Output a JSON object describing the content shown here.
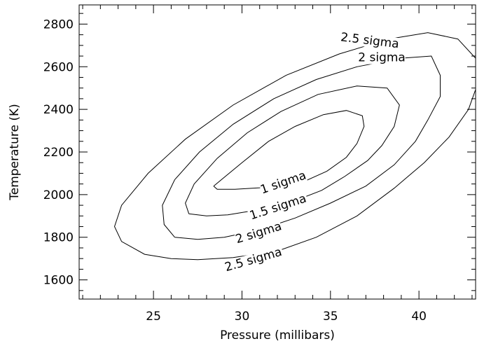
{
  "chart_data": {
    "type": "contour",
    "xlabel": "Pressure (millibars)",
    "ylabel": "Temperature (K)",
    "xlim": [
      20.8,
      43.2
    ],
    "ylim": [
      1510,
      2890
    ],
    "x_ticks": [
      25,
      30,
      35,
      40
    ],
    "x_tick_labels": [
      "25",
      "30",
      "35",
      "40"
    ],
    "y_ticks": [
      1600,
      1800,
      2000,
      2200,
      2400,
      2600,
      2800
    ],
    "y_tick_labels": [
      "1600",
      "1800",
      "2000",
      "2200",
      "2400",
      "2600",
      "2800"
    ],
    "contours": [
      {
        "label": "1 sigma",
        "points": [
          [
            28.4,
            2040
          ],
          [
            30.0,
            2150
          ],
          [
            31.5,
            2250
          ],
          [
            33.0,
            2320
          ],
          [
            34.6,
            2375
          ],
          [
            35.9,
            2395
          ],
          [
            36.8,
            2370
          ],
          [
            36.9,
            2320
          ],
          [
            36.5,
            2240
          ],
          [
            35.9,
            2175
          ],
          [
            34.8,
            2110
          ],
          [
            33.6,
            2065
          ],
          [
            31.0,
            2032
          ],
          [
            29.6,
            2025
          ],
          [
            28.6,
            2025
          ],
          [
            28.4,
            2040
          ]
        ],
        "label_text_at": [
          32.4,
          2040
        ],
        "label_angle_deg": -19
      },
      {
        "label": "1.5 sigma",
        "points": [
          [
            27.0,
            1910
          ],
          [
            26.8,
            1960
          ],
          [
            27.3,
            2050
          ],
          [
            28.6,
            2170
          ],
          [
            30.3,
            2290
          ],
          [
            32.2,
            2390
          ],
          [
            34.3,
            2470
          ],
          [
            36.5,
            2510
          ],
          [
            38.2,
            2500
          ],
          [
            38.9,
            2420
          ],
          [
            38.6,
            2320
          ],
          [
            37.9,
            2230
          ],
          [
            37.1,
            2160
          ],
          [
            35.8,
            2085
          ],
          [
            34.5,
            2020
          ],
          [
            32.8,
            1965
          ],
          [
            31.0,
            1930
          ],
          [
            29.2,
            1905
          ],
          [
            28.0,
            1900
          ],
          [
            27.0,
            1910
          ]
        ],
        "label_text_at": [
          32.1,
          1925
        ],
        "label_angle_deg": -18
      },
      {
        "label": "2 sigma",
        "points": [
          [
            26.2,
            1800
          ],
          [
            25.6,
            1860
          ],
          [
            25.5,
            1950
          ],
          [
            26.2,
            2070
          ],
          [
            27.6,
            2200
          ],
          [
            29.5,
            2330
          ],
          [
            31.8,
            2450
          ],
          [
            34.2,
            2540
          ],
          [
            36.5,
            2600
          ],
          [
            39.0,
            2640
          ],
          [
            40.7,
            2650
          ],
          [
            41.2,
            2560
          ],
          [
            41.2,
            2460
          ],
          [
            40.5,
            2350
          ],
          [
            39.8,
            2250
          ],
          [
            38.6,
            2140
          ],
          [
            37.0,
            2040
          ],
          [
            35.0,
            1960
          ],
          [
            33.0,
            1890
          ],
          [
            31.0,
            1835
          ],
          [
            29.0,
            1800
          ],
          [
            27.5,
            1790
          ],
          [
            26.2,
            1800
          ]
        ],
        "label_text_at": [
          31.0,
          1804
        ],
        "label_angle_deg": -17,
        "upper_label_text_at": [
          37.9,
          2625
        ],
        "upper_label_angle_deg": 0
      },
      {
        "label": "2.5 sigma",
        "points": [
          [
            26.0,
            1700
          ],
          [
            24.5,
            1720
          ],
          [
            23.2,
            1780
          ],
          [
            22.8,
            1850
          ],
          [
            23.2,
            1950
          ],
          [
            24.7,
            2100
          ],
          [
            26.8,
            2260
          ],
          [
            29.5,
            2420
          ],
          [
            32.5,
            2560
          ],
          [
            35.5,
            2660
          ],
          [
            38.3,
            2730
          ],
          [
            40.5,
            2760
          ],
          [
            42.2,
            2730
          ],
          [
            43.2,
            2640
          ],
          [
            43.4,
            2540
          ],
          [
            42.8,
            2400
          ],
          [
            41.7,
            2270
          ],
          [
            40.3,
            2150
          ],
          [
            38.6,
            2030
          ],
          [
            36.5,
            1900
          ],
          [
            34.2,
            1800
          ],
          [
            32.0,
            1735
          ],
          [
            29.5,
            1705
          ],
          [
            27.5,
            1695
          ],
          [
            26.0,
            1700
          ]
        ],
        "label_text_at": [
          30.7,
          1678
        ],
        "label_angle_deg": -16,
        "upper_label_text_at": [
          37.2,
          2705
        ],
        "upper_label_angle_deg": 7
      }
    ],
    "grid": false,
    "legend": "none"
  }
}
